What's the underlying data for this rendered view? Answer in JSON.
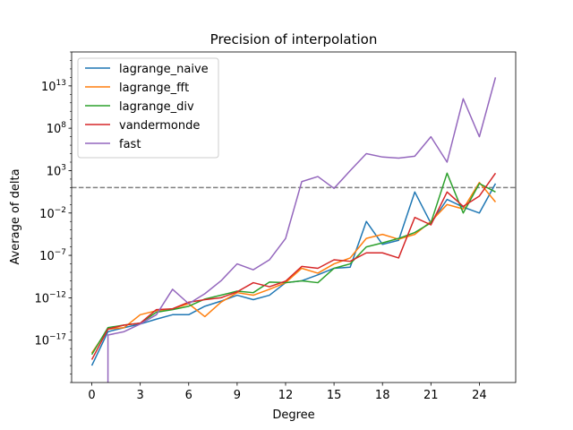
{
  "chart_data": {
    "type": "line",
    "title": "Precision of interpolation",
    "xlabel": "Degree",
    "ylabel": "Average of delta",
    "yscale": "log",
    "xlim": [
      -1.25,
      26.25
    ],
    "ylim": [
      1e-22,
      1e+17
    ],
    "x_ticks": [
      0,
      3,
      6,
      9,
      12,
      15,
      18,
      21,
      24
    ],
    "y_ticks": [
      {
        "exp": -17,
        "label": "10^-17"
      },
      {
        "exp": -12,
        "label": "10^-12"
      },
      {
        "exp": -7,
        "label": "10^-7"
      },
      {
        "exp": -2,
        "label": "10^-2"
      },
      {
        "exp": 3,
        "label": "10^3"
      },
      {
        "exp": 8,
        "label": "10^8"
      },
      {
        "exp": 13,
        "label": "10^13"
      }
    ],
    "legend_position": "top-left",
    "grid": false,
    "reference_line": {
      "y": 10,
      "style": "dashed",
      "color": "#808080"
    },
    "series": [
      {
        "name": "lagrange_naive",
        "color": "#1f77b4",
        "x": [
          0,
          1,
          2,
          3,
          4,
          5,
          6,
          7,
          8,
          9,
          10,
          11,
          12,
          13,
          14,
          15,
          16,
          17,
          18,
          19,
          20,
          21,
          22,
          23,
          24,
          25
        ],
        "y": [
          1e-20,
          1e-16,
          3e-16,
          8e-16,
          3e-15,
          1e-14,
          1e-14,
          1e-13,
          4e-13,
          2e-12,
          6e-13,
          2e-12,
          6e-11,
          1e-10,
          5e-10,
          3e-09,
          4e-09,
          0.001,
          2e-06,
          6e-06,
          3,
          0.0006,
          0.4,
          0.05,
          0.01,
          30.0
        ],
        "legend_label": "lagrange_naive"
      },
      {
        "name": "lagrange_fft",
        "color": "#ff7f0e",
        "x": [
          0,
          1,
          2,
          3,
          4,
          5,
          6,
          7,
          8,
          9,
          10,
          11,
          12,
          13,
          14,
          15,
          16,
          17,
          18,
          19,
          20,
          21,
          22,
          23,
          24,
          25
        ],
        "y": [
          3e-19,
          2e-16,
          3e-16,
          1e-14,
          3e-14,
          5e-14,
          2e-13,
          6e-15,
          3e-13,
          4e-12,
          2e-12,
          1e-11,
          6e-11,
          3e-09,
          8e-10,
          1e-08,
          5e-08,
          1e-05,
          3e-05,
          8e-06,
          3e-05,
          0.001,
          0.1,
          0.03,
          40.0,
          0.2
        ],
        "legend_label": "lagrange_fft"
      },
      {
        "name": "lagrange_div",
        "color": "#2ca02c",
        "x": [
          0,
          1,
          2,
          3,
          4,
          5,
          6,
          7,
          8,
          9,
          10,
          11,
          12,
          13,
          14,
          15,
          16,
          17,
          18,
          19,
          20,
          21,
          22,
          23,
          24,
          25
        ],
        "y": [
          2e-19,
          3e-16,
          6e-16,
          1e-15,
          2e-14,
          4e-14,
          1e-13,
          7e-13,
          2e-12,
          6e-12,
          4e-12,
          7e-11,
          6e-11,
          1e-10,
          6e-11,
          3e-09,
          1e-08,
          1e-06,
          3e-06,
          1e-05,
          5e-05,
          0.0007,
          500.0,
          0.01,
          30.0,
          3.0
        ],
        "legend_label": "lagrange_div"
      },
      {
        "name": "vandermonde",
        "color": "#d62728",
        "x": [
          0,
          1,
          2,
          3,
          4,
          5,
          6,
          7,
          8,
          9,
          10,
          11,
          12,
          13,
          14,
          15,
          16,
          17,
          18,
          19,
          20,
          21,
          22,
          23,
          24,
          25
        ],
        "y": [
          5e-20,
          2e-16,
          6e-16,
          1e-15,
          4e-14,
          5e-14,
          3e-13,
          6e-13,
          1e-12,
          5e-12,
          6e-11,
          2e-11,
          9e-11,
          5e-09,
          3e-09,
          3e-08,
          2e-08,
          2e-07,
          2e-07,
          5e-08,
          0.003,
          0.0004,
          3.0,
          0.06,
          1.0,
          500.0
        ],
        "legend_label": "vandermonde"
      },
      {
        "name": "fast",
        "color": "#9467bd",
        "x": [
          0,
          1,
          1.001,
          2,
          3,
          4,
          5,
          6,
          7,
          8,
          9,
          10,
          11,
          12,
          13,
          14,
          15,
          16,
          17,
          18,
          19,
          20,
          21,
          22,
          23,
          24,
          25
        ],
        "y": [
          null,
          1e-22,
          4e-17,
          1e-16,
          8e-16,
          1e-14,
          1e-11,
          2e-13,
          3e-12,
          1e-10,
          1e-08,
          2e-09,
          3e-08,
          1e-05,
          50.0,
          200.0,
          8.0,
          1000.0,
          100000.0,
          40000.0,
          30000.0,
          50000.0,
          10000000.0,
          10000.0,
          300000000000.0,
          10000000.0,
          100000000000000.0
        ],
        "legend_label": "fast"
      }
    ]
  }
}
